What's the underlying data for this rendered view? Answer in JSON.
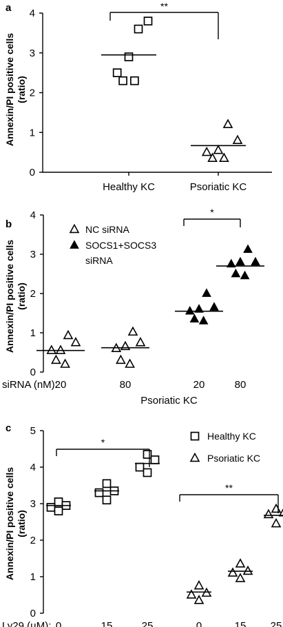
{
  "chart_data": [
    {
      "panel": "a",
      "type": "scatter",
      "ylabel": [
        "Annexin/PI positive cells",
        "(ratio)"
      ],
      "ylim": [
        0,
        4
      ],
      "yticks": [
        "0",
        "1",
        "2",
        "3",
        "4"
      ],
      "categories": [
        "Healthy KC",
        "Psoriatic KC"
      ],
      "groups": [
        {
          "category": "Healthy KC",
          "marker": "square-open",
          "mean": 2.95,
          "values": [
            3.6,
            3.8,
            2.9,
            2.5,
            2.3,
            2.3
          ]
        },
        {
          "category": "Psoriatic KC",
          "marker": "triangle-open",
          "mean": 0.67,
          "values": [
            1.2,
            0.8,
            0.55,
            0.5,
            0.35,
            0.35
          ]
        }
      ],
      "significance": [
        {
          "from": "Healthy KC",
          "to": "Psoriatic KC",
          "label": "**"
        }
      ]
    },
    {
      "panel": "b",
      "type": "scatter",
      "ylabel": [
        "Annexin/PI positive cells",
        "(ratio)"
      ],
      "ylim": [
        0,
        4
      ],
      "yticks": [
        "0",
        "1",
        "2",
        "3",
        "4"
      ],
      "axis_prefix": "siRNA (nM):",
      "x_labels": [
        "20",
        "80",
        "20",
        "80"
      ],
      "group_label": "Psoriatic KC",
      "legend": [
        {
          "label": "NC siRNA",
          "marker": "triangle-open"
        },
        {
          "label": "SOCS1+SOCS3",
          "label2": "siRNA",
          "marker": "triangle-filled"
        }
      ],
      "groups": [
        {
          "x_label": "20",
          "marker": "triangle-open",
          "mean": 0.55,
          "values": [
            0.93,
            0.75,
            0.55,
            0.55,
            0.3,
            0.2
          ]
        },
        {
          "x_label": "80",
          "marker": "triangle-open",
          "mean": 0.62,
          "values": [
            1.02,
            0.75,
            0.65,
            0.6,
            0.3,
            0.2
          ]
        },
        {
          "x_label": "20",
          "marker": "triangle-filled",
          "mean": 1.55,
          "values": [
            2.0,
            1.65,
            1.6,
            1.55,
            1.35,
            1.3
          ]
        },
        {
          "x_label": "80",
          "marker": "triangle-filled",
          "mean": 2.7,
          "values": [
            3.12,
            2.8,
            2.8,
            2.75,
            2.5,
            2.45
          ]
        }
      ],
      "significance": [
        {
          "from": 2,
          "to": 3,
          "label": "*"
        }
      ]
    },
    {
      "panel": "c",
      "type": "scatter",
      "ylabel": [
        "Annexin/PI positive cells",
        "(ratio)"
      ],
      "ylim": [
        0,
        5
      ],
      "yticks": [
        "0",
        "1",
        "2",
        "3",
        "4",
        "5"
      ],
      "axis_prefix": "Ly29 (µM):",
      "x_labels": [
        "0",
        "15",
        "25",
        "0",
        "15",
        "25"
      ],
      "legend": [
        {
          "label": "Healthy KC",
          "marker": "square-open"
        },
        {
          "label": "Psoriatic KC",
          "marker": "triangle-open"
        }
      ],
      "groups": [
        {
          "x_label": "0",
          "marker": "square-open",
          "mean": 2.95,
          "values": [
            3.05,
            2.95,
            2.9,
            2.8
          ]
        },
        {
          "x_label": "15",
          "marker": "square-open",
          "mean": 3.35,
          "values": [
            3.55,
            3.35,
            3.3,
            3.1
          ]
        },
        {
          "x_label": "25",
          "marker": "square-open",
          "mean": 4.1,
          "values": [
            4.35,
            4.2,
            4.0,
            3.85
          ]
        },
        {
          "x_label": "0",
          "marker": "triangle-open",
          "mean": 0.58,
          "values": [
            0.75,
            0.55,
            0.5,
            0.35
          ]
        },
        {
          "x_label": "15",
          "marker": "triangle-open",
          "mean": 1.15,
          "values": [
            1.35,
            1.15,
            1.1,
            0.95
          ]
        },
        {
          "x_label": "25",
          "marker": "triangle-open",
          "mean": 2.68,
          "values": [
            2.85,
            2.75,
            2.7,
            2.45
          ]
        }
      ],
      "significance": [
        {
          "from": 0,
          "to": 2,
          "label": "*"
        },
        {
          "from": 3,
          "to": 5,
          "label": "**"
        }
      ]
    }
  ]
}
